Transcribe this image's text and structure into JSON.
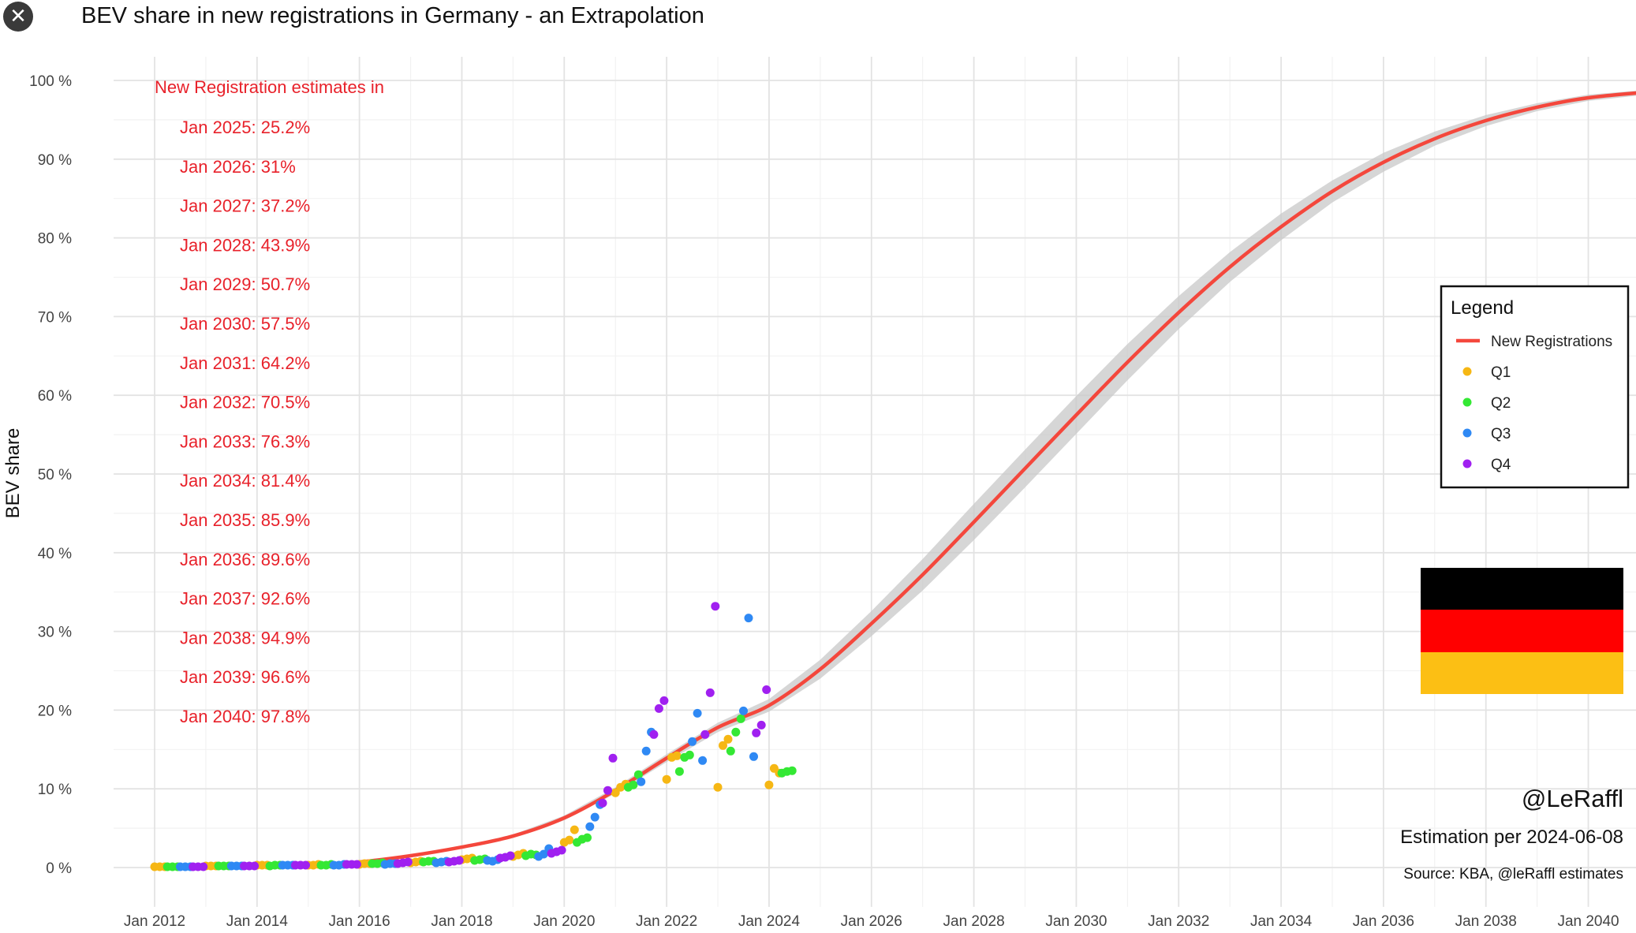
{
  "window": {
    "close_icon": "close-icon"
  },
  "chart_data": {
    "type": "line",
    "title": "BEV share in new registrations in Germany - an Extrapolation",
    "ylabel": "BEV share",
    "xlabel": "",
    "xlim": [
      2011.2,
      2041.5
    ],
    "ylim": [
      -5,
      103
    ],
    "grid": true,
    "x_ticks": [
      "Jan 2012",
      "Jan 2014",
      "Jan 2016",
      "Jan 2018",
      "Jan 2020",
      "Jan 2022",
      "Jan 2024",
      "Jan 2026",
      "Jan 2028",
      "Jan 2030",
      "Jan 2032",
      "Jan 2034",
      "Jan 2036",
      "Jan 2038",
      "Jan 2040"
    ],
    "y_ticks": [
      "0 %",
      "10 %",
      "20 %",
      "30 %",
      "40 %",
      "50 %",
      "60 %",
      "70 %",
      "80 %",
      "90 %",
      "100 %"
    ],
    "estimates_header": "New Registration estimates in",
    "estimates": [
      "Jan 2025: 25.2%",
      "Jan 2026: 31%",
      "Jan 2027: 37.2%",
      "Jan 2028: 43.9%",
      "Jan 2029: 50.7%",
      "Jan 2030: 57.5%",
      "Jan 2031: 64.2%",
      "Jan 2032: 70.5%",
      "Jan 2033: 76.3%",
      "Jan 2034: 81.4%",
      "Jan 2035: 85.9%",
      "Jan 2036: 89.6%",
      "Jan 2037: 92.6%",
      "Jan 2038: 94.9%",
      "Jan 2039: 96.6%",
      "Jan 2040: 97.8%"
    ],
    "series": [
      {
        "name": "New Registrations",
        "kind": "line",
        "color": "#f4473c",
        "x": [
          2012,
          2013,
          2014,
          2015,
          2016,
          2017,
          2018,
          2019,
          2020,
          2021,
          2022,
          2023,
          2024,
          2025,
          2026,
          2027,
          2028,
          2029,
          2030,
          2031,
          2032,
          2033,
          2034,
          2035,
          2036,
          2037,
          2038,
          2039,
          2040,
          2041.3
        ],
        "y": [
          0,
          0,
          0.1,
          0.2,
          0.7,
          1.5,
          2.6,
          4.0,
          6.3,
          9.8,
          13.9,
          17.8,
          20.6,
          25.2,
          31,
          37.2,
          43.9,
          50.7,
          57.5,
          64.2,
          70.5,
          76.3,
          81.4,
          85.9,
          89.6,
          92.6,
          94.9,
          96.6,
          97.8,
          98.6
        ],
        "band": [
          0,
          0,
          0,
          0.1,
          0.1,
          0.1,
          0.1,
          0.2,
          0.3,
          0.4,
          0.5,
          0.6,
          0.8,
          1.2,
          1.6,
          2.0,
          2.3,
          2.4,
          2.4,
          2.3,
          2.1,
          1.9,
          1.7,
          1.4,
          1.2,
          0.9,
          0.7,
          0.5,
          0.4,
          0.3
        ]
      },
      {
        "name": "Q1",
        "kind": "scatter",
        "color": "#f6b714",
        "x": [
          2012.0,
          2012.1,
          2012.2,
          2013.0,
          2013.1,
          2013.2,
          2014.0,
          2014.1,
          2014.2,
          2015.0,
          2015.1,
          2015.2,
          2016.0,
          2016.1,
          2016.2,
          2017.0,
          2017.1,
          2017.2,
          2018.0,
          2018.1,
          2018.2,
          2019.0,
          2019.1,
          2019.2,
          2020.0,
          2020.1,
          2020.2,
          2021.0,
          2021.1,
          2021.2,
          2022.0,
          2022.1,
          2022.2,
          2023.0,
          2023.1,
          2023.2,
          2024.0,
          2024.1,
          2024.2
        ],
        "y": [
          0.1,
          0.1,
          0.1,
          0.2,
          0.2,
          0.2,
          0.3,
          0.3,
          0.3,
          0.3,
          0.3,
          0.4,
          0.4,
          0.5,
          0.5,
          0.6,
          0.7,
          0.8,
          1.0,
          1.1,
          1.2,
          1.4,
          1.6,
          1.8,
          3.2,
          3.5,
          4.8,
          9.5,
          10.2,
          10.6,
          11.2,
          14.0,
          14.2,
          10.2,
          15.5,
          16.3,
          10.5,
          12.6,
          12.0
        ]
      },
      {
        "name": "Q2",
        "kind": "scatter",
        "color": "#34e834",
        "x": [
          2012.25,
          2012.35,
          2012.45,
          2013.25,
          2013.35,
          2013.45,
          2014.25,
          2014.35,
          2014.45,
          2015.25,
          2015.35,
          2015.45,
          2016.25,
          2016.35,
          2016.45,
          2017.25,
          2017.35,
          2017.45,
          2018.25,
          2018.35,
          2018.45,
          2019.25,
          2019.35,
          2019.45,
          2020.25,
          2020.35,
          2020.45,
          2021.25,
          2021.35,
          2021.45,
          2022.25,
          2022.35,
          2022.45,
          2023.25,
          2023.35,
          2023.45,
          2024.25,
          2024.35,
          2024.45
        ],
        "y": [
          0.1,
          0.1,
          0.1,
          0.2,
          0.2,
          0.2,
          0.2,
          0.3,
          0.3,
          0.3,
          0.3,
          0.4,
          0.5,
          0.5,
          0.6,
          0.7,
          0.8,
          0.8,
          0.9,
          1.0,
          1.1,
          1.5,
          1.7,
          1.6,
          3.2,
          3.6,
          3.8,
          10.2,
          10.5,
          11.8,
          12.2,
          14.0,
          14.3,
          14.8,
          17.2,
          18.9,
          12.0,
          12.2,
          12.3
        ]
      },
      {
        "name": "Q3",
        "kind": "scatter",
        "color": "#2f89f4",
        "x": [
          2012.5,
          2012.6,
          2012.7,
          2013.5,
          2013.6,
          2013.7,
          2014.5,
          2014.6,
          2014.7,
          2015.5,
          2015.6,
          2015.7,
          2016.5,
          2016.6,
          2016.7,
          2017.5,
          2017.6,
          2017.7,
          2018.5,
          2018.6,
          2018.7,
          2019.5,
          2019.6,
          2019.7,
          2020.5,
          2020.6,
          2020.7,
          2021.5,
          2021.6,
          2021.7,
          2022.5,
          2022.6,
          2022.7,
          2023.5,
          2023.6,
          2023.7
        ],
        "y": [
          0.1,
          0.1,
          0.1,
          0.2,
          0.2,
          0.2,
          0.3,
          0.3,
          0.3,
          0.3,
          0.3,
          0.4,
          0.4,
          0.5,
          0.5,
          0.6,
          0.7,
          0.8,
          0.9,
          0.8,
          1.0,
          1.4,
          1.7,
          2.4,
          5.2,
          6.4,
          8.0,
          10.9,
          14.8,
          17.2,
          16.0,
          19.6,
          13.6,
          19.9,
          31.7,
          14.1
        ]
      },
      {
        "name": "Q4",
        "kind": "scatter",
        "color": "#a020f0",
        "x": [
          2012.75,
          2012.85,
          2012.95,
          2013.75,
          2013.85,
          2013.95,
          2014.75,
          2014.85,
          2014.95,
          2015.75,
          2015.85,
          2015.95,
          2016.75,
          2016.85,
          2016.95,
          2017.75,
          2017.85,
          2017.95,
          2018.75,
          2018.85,
          2018.95,
          2019.75,
          2019.85,
          2019.95,
          2020.75,
          2020.85,
          2020.95,
          2021.75,
          2021.85,
          2021.95,
          2022.75,
          2022.85,
          2022.95,
          2023.75,
          2023.85,
          2023.95
        ],
        "y": [
          0.1,
          0.1,
          0.1,
          0.2,
          0.2,
          0.2,
          0.3,
          0.3,
          0.3,
          0.4,
          0.4,
          0.4,
          0.5,
          0.6,
          0.7,
          0.7,
          0.8,
          0.9,
          1.2,
          1.3,
          1.5,
          1.8,
          2.0,
          2.2,
          8.2,
          9.8,
          13.9,
          16.9,
          20.2,
          21.2,
          16.9,
          22.2,
          33.2,
          17.1,
          18.1,
          22.6
        ]
      }
    ],
    "legend": {
      "title": "Legend",
      "placement": "right"
    },
    "annotations": {
      "handle": "@LeRaffl",
      "estimation": "Estimation per 2024-06-08",
      "source": "Source: KBA, @leRaffl estimates"
    },
    "flag_colors": [
      "#000000",
      "#ff0000",
      "#fcbf14"
    ]
  }
}
